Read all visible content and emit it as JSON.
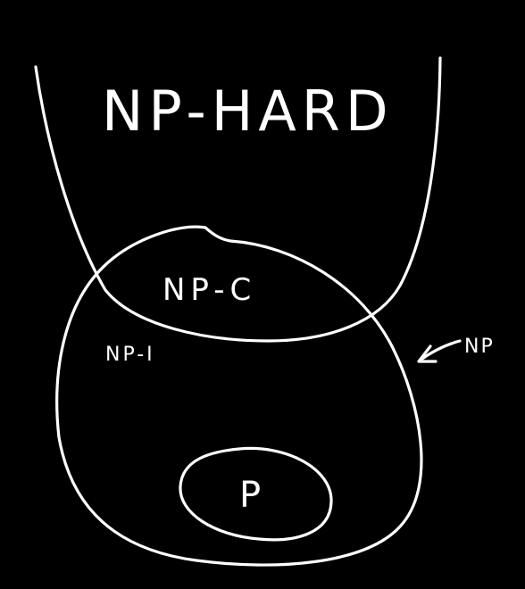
{
  "diagram": {
    "background_color": "#000000",
    "stroke_color": "#ffffff",
    "labels": {
      "np_hard": "NP-HARD",
      "np_complete": "NP-C",
      "np_intermediate": "NP-I",
      "np": "NP",
      "p": "P"
    }
  }
}
